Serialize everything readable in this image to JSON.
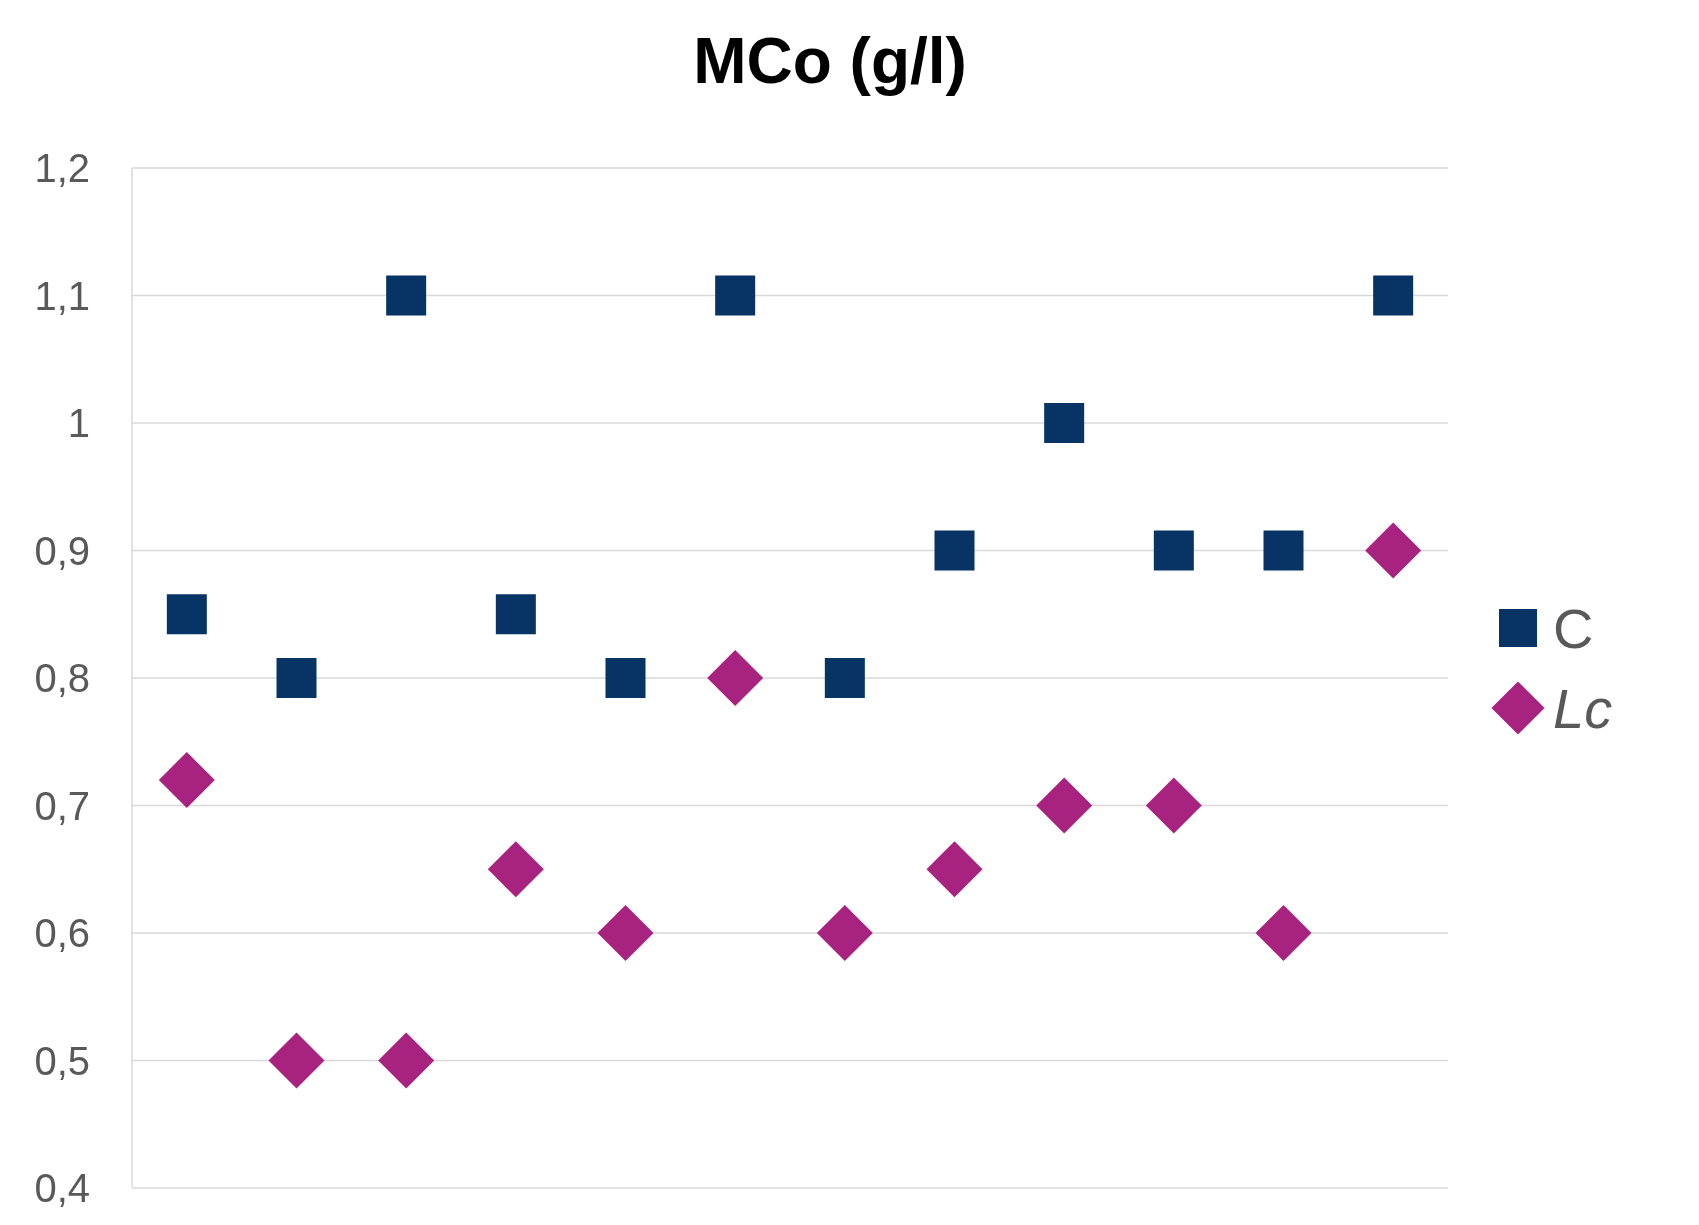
{
  "chart_data": {
    "type": "scatter",
    "title": "MCo (g/l)",
    "categories": [
      null,
      null,
      null,
      null,
      null,
      null,
      null,
      null,
      null,
      null,
      null,
      null
    ],
    "series": [
      {
        "name": "C",
        "color": "#073464",
        "marker": "square",
        "values": [
          0.85,
          0.8,
          1.1,
          0.85,
          0.8,
          1.1,
          0.8,
          0.9,
          1.0,
          0.9,
          0.9,
          1.1
        ]
      },
      {
        "name": "Lc",
        "color": "#a8237f",
        "marker": "diamond",
        "values": [
          0.72,
          0.5,
          0.5,
          0.65,
          0.6,
          0.8,
          0.6,
          0.65,
          0.7,
          0.7,
          0.6,
          0.9
        ]
      }
    ],
    "ylim": [
      0.4,
      1.2
    ],
    "yticks": [
      {
        "value": 0.4,
        "label": "0,4"
      },
      {
        "value": 0.5,
        "label": "0,5"
      },
      {
        "value": 0.6,
        "label": "0,6"
      },
      {
        "value": 0.7,
        "label": "0,7"
      },
      {
        "value": 0.8,
        "label": "0,8"
      },
      {
        "value": 0.9,
        "label": "0,9"
      },
      {
        "value": 1,
        "label": "1"
      },
      {
        "value": 1.1,
        "label": "1,1"
      },
      {
        "value": 1.2,
        "label": "1,2"
      }
    ],
    "grid": "y",
    "legend": "right",
    "tick_labels": "y"
  }
}
